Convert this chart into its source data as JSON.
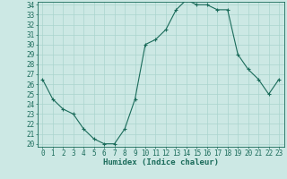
{
  "x": [
    0,
    1,
    2,
    3,
    4,
    5,
    6,
    7,
    8,
    9,
    10,
    11,
    12,
    13,
    14,
    15,
    16,
    17,
    18,
    19,
    20,
    21,
    22,
    23
  ],
  "y": [
    26.5,
    24.5,
    23.5,
    23.0,
    21.5,
    20.5,
    20.0,
    20.0,
    21.5,
    24.5,
    30.0,
    30.5,
    31.5,
    33.5,
    34.5,
    34.0,
    34.0,
    33.5,
    33.5,
    29.0,
    27.5,
    26.5,
    25.0,
    26.5
  ],
  "xlabel": "Humidex (Indice chaleur)",
  "ylim": [
    20,
    34
  ],
  "xlim": [
    -0.5,
    23.5
  ],
  "yticks": [
    20,
    21,
    22,
    23,
    24,
    25,
    26,
    27,
    28,
    29,
    30,
    31,
    32,
    33,
    34
  ],
  "xticks": [
    0,
    1,
    2,
    3,
    4,
    5,
    6,
    7,
    8,
    9,
    10,
    11,
    12,
    13,
    14,
    15,
    16,
    17,
    18,
    19,
    20,
    21,
    22,
    23
  ],
  "line_color": "#1a6b5a",
  "marker": "+",
  "bg_color": "#cce8e4",
  "grid_color": "#aad4ce",
  "xlabel_fontsize": 6.5,
  "tick_fontsize": 5.5
}
